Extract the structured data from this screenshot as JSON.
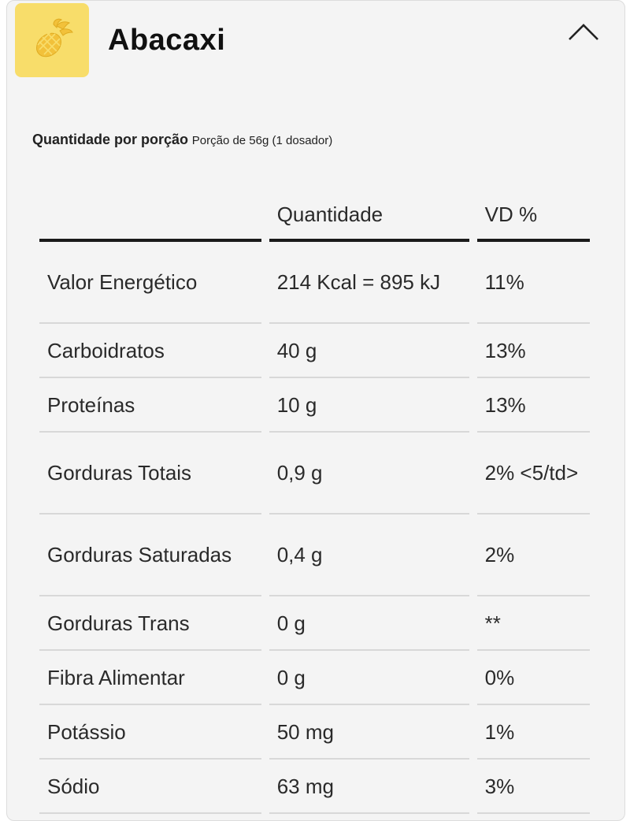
{
  "header": {
    "title": "Abacaxi",
    "flavor_icon": "pineapple-icon",
    "collapse_icon": "chevron-up-icon"
  },
  "serving": {
    "label": "Quantidade por porção",
    "portion": "Porção de 56g (1 dosador)"
  },
  "table": {
    "headers": [
      "",
      "Quantidade",
      "VD %"
    ],
    "rows": [
      {
        "name": "Valor Energético",
        "amount": "214 Kcal = 895 kJ",
        "dv": "11%"
      },
      {
        "name": "Carboidratos",
        "amount": "40 g",
        "dv": "13%"
      },
      {
        "name": "Proteínas",
        "amount": "10 g",
        "dv": "13%"
      },
      {
        "name": "Gorduras Totais",
        "amount": "0,9 g",
        "dv": "2% <5/td>"
      },
      {
        "name": "Gorduras Saturadas",
        "amount": "0,4 g",
        "dv": "2%"
      },
      {
        "name": "Gorduras Trans",
        "amount": "0 g",
        "dv": "**"
      },
      {
        "name": "Fibra Alimentar",
        "amount": "0 g",
        "dv": "0%"
      },
      {
        "name": "Potássio",
        "amount": "50 mg",
        "dv": "1%"
      },
      {
        "name": "Sódio",
        "amount": "63 mg",
        "dv": "3%"
      }
    ]
  },
  "colors": {
    "icon_bg": "#f8dd6a",
    "card_bg": "#f4f4f4",
    "header_rule": "#1a1a1a"
  }
}
